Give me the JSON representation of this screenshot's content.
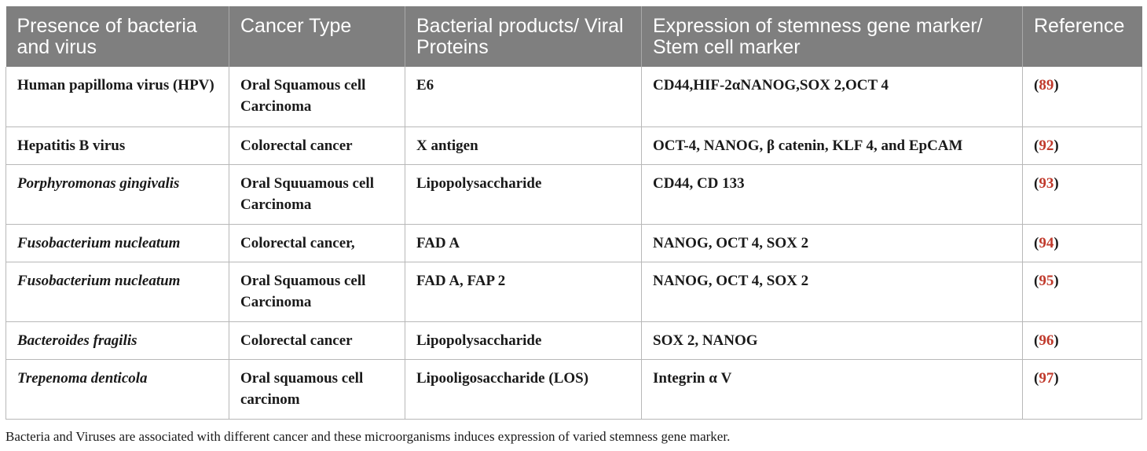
{
  "headers": [
    "Presence of bacteria and virus",
    "Cancer Type",
    "Bacterial products/ Viral Proteins",
    "Expression of stemness gene marker/ Stem cell marker",
    "Reference"
  ],
  "rows": [
    {
      "organism": "Human papilloma virus (HPV)",
      "cancer": "Oral Squamous cell Carcinoma",
      "product": "E6",
      "marker": "CD44,HIF-2αNANOG,SOX 2,OCT 4",
      "ref": "89"
    },
    {
      "organism": "Hepatitis B virus",
      "cancer": "Colorectal cancer",
      "product": "X antigen",
      "marker": "OCT-4, NANOG, β catenin, KLF 4, and EpCAM",
      "ref": "92"
    },
    {
      "organism": "Porphyromonas gingivalis",
      "cancer": "Oral Squuamous cell Carcinoma",
      "product": "Lipopolysaccharide",
      "marker": "CD44, CD 133",
      "ref": "93"
    },
    {
      "organism": "Fusobacterium nucleatum",
      "cancer": "Colorectal cancer,",
      "product": "FAD A",
      "marker": "NANOG, OCT 4, SOX 2",
      "ref": "94"
    },
    {
      "organism": "Fusobacterium nucleatum",
      "cancer": "Oral Squamous cell Carcinoma",
      "product": "FAD A, FAP 2",
      "marker": "NANOG, OCT 4, SOX 2",
      "ref": "95"
    },
    {
      "organism": "Bacteroides fragilis",
      "cancer": "Colorectal cancer",
      "product": "Lipopolysaccharide",
      "marker": "SOX 2, NANOG",
      "ref": "96"
    },
    {
      "organism": "Trepenoma denticola",
      "cancer": "Oral squamous cell carcinom",
      "product": "Lipooligosaccharide (LOS)",
      "marker": "Integrin α V",
      "ref": "97"
    }
  ],
  "caption": "Bacteria and Viruses are associated with different cancer and these microorganisms induces expression of varied stemness gene marker."
}
